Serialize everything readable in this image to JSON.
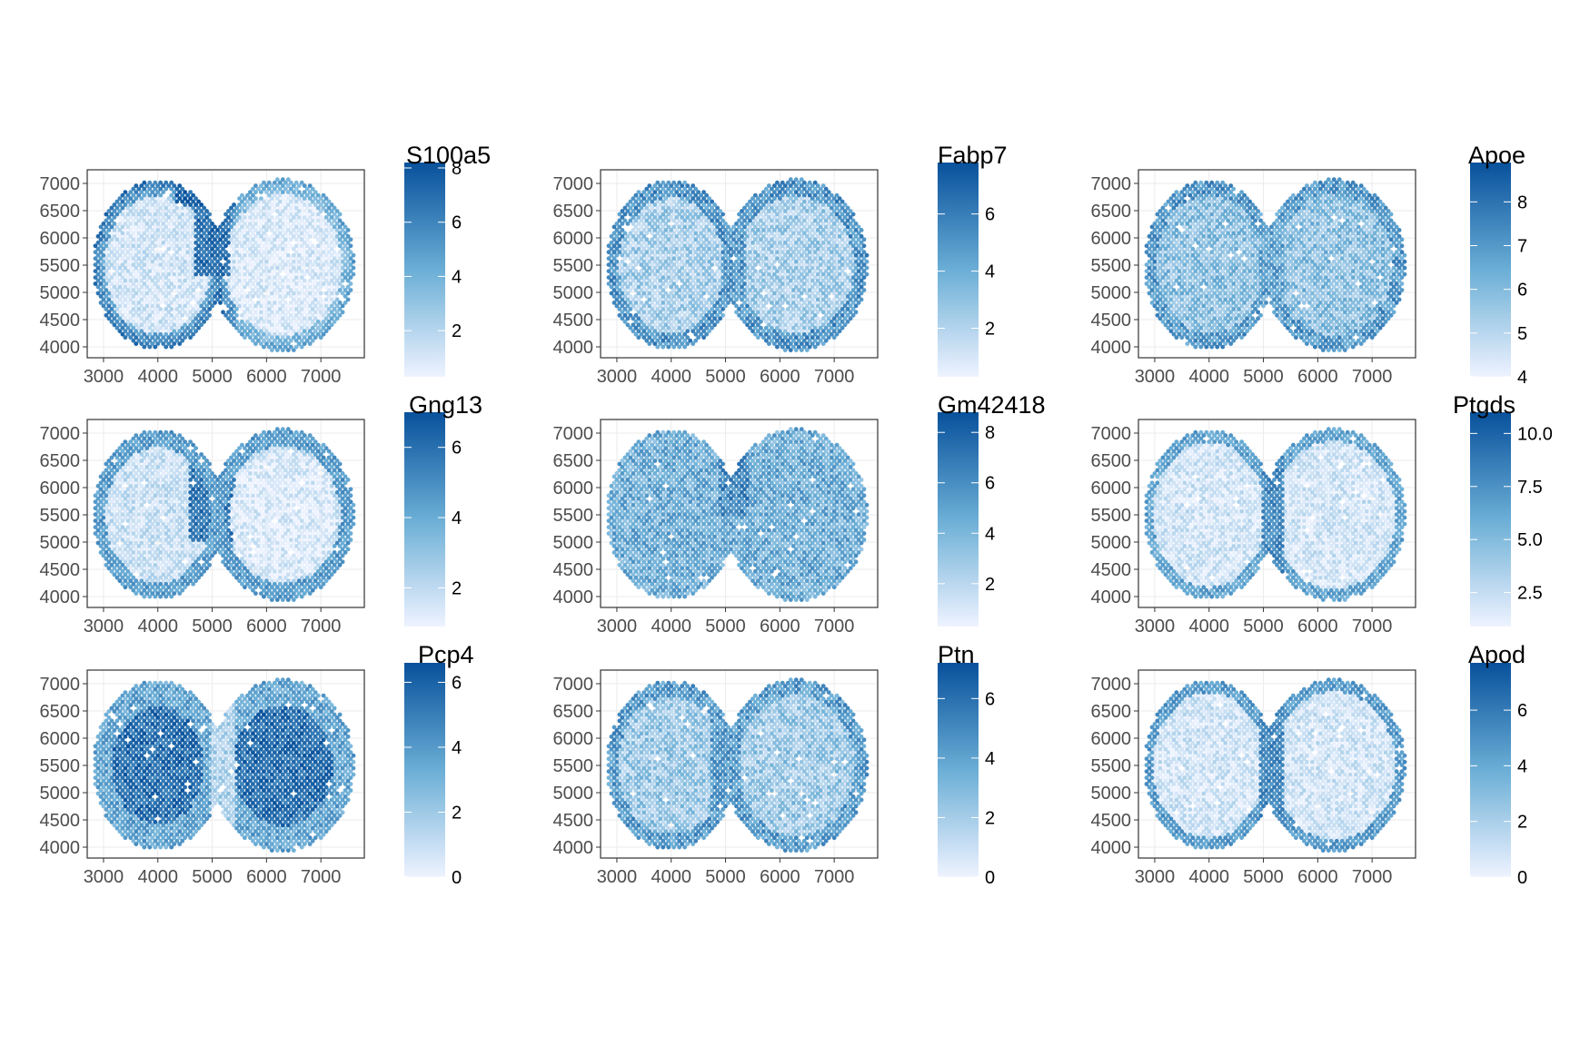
{
  "chart_data": [
    {
      "type": "scatter",
      "gene": "S100a5",
      "legend": {
        "title": "S100a5",
        "ticks": [
          "2",
          "4",
          "6",
          "8"
        ],
        "tick_values": [
          2,
          4,
          6,
          8
        ],
        "range": [
          0.3,
          8.2
        ]
      },
      "pattern": "s100a5",
      "xlim": [
        2700,
        7800
      ],
      "ylim": [
        3800,
        7250
      ],
      "x_ticks": [
        "3000",
        "4000",
        "5000",
        "6000",
        "7000"
      ],
      "y_ticks": [
        "4000",
        "4500",
        "5000",
        "5500",
        "6000",
        "6500",
        "7000"
      ]
    },
    {
      "type": "scatter",
      "gene": "Fabp7",
      "legend": {
        "title": "Fabp7",
        "ticks": [
          "2",
          "4",
          "6"
        ],
        "tick_values": [
          2,
          4,
          6
        ],
        "range": [
          0.3,
          7.8
        ]
      },
      "pattern": "fabp7",
      "xlim": [
        2700,
        7800
      ],
      "ylim": [
        3800,
        7250
      ],
      "x_ticks": [
        "3000",
        "4000",
        "5000",
        "6000",
        "7000"
      ],
      "y_ticks": [
        "4000",
        "4500",
        "5000",
        "5500",
        "6000",
        "6500",
        "7000"
      ]
    },
    {
      "type": "scatter",
      "gene": "Apoe",
      "legend": {
        "title": "Apoe",
        "ticks": [
          "4",
          "5",
          "6",
          "7",
          "8"
        ],
        "tick_values": [
          4,
          5,
          6,
          7,
          8
        ],
        "range": [
          4.0,
          8.9
        ]
      },
      "pattern": "apoe",
      "xlim": [
        2700,
        7800
      ],
      "ylim": [
        3800,
        7250
      ],
      "x_ticks": [
        "3000",
        "4000",
        "5000",
        "6000",
        "7000"
      ],
      "y_ticks": [
        "4000",
        "4500",
        "5000",
        "5500",
        "6000",
        "6500",
        "7000"
      ]
    },
    {
      "type": "scatter",
      "gene": "Gng13",
      "legend": {
        "title": "Gng13",
        "ticks": [
          "2",
          "4",
          "6"
        ],
        "tick_values": [
          2,
          4,
          6
        ],
        "range": [
          0.9,
          7.0
        ]
      },
      "pattern": "gng13",
      "xlim": [
        2700,
        7800
      ],
      "ylim": [
        3800,
        7250
      ],
      "x_ticks": [
        "3000",
        "4000",
        "5000",
        "6000",
        "7000"
      ],
      "y_ticks": [
        "4000",
        "4500",
        "5000",
        "5500",
        "6000",
        "6500",
        "7000"
      ]
    },
    {
      "type": "scatter",
      "gene": "Gm42418",
      "legend": {
        "title": "Gm42418",
        "ticks": [
          "2",
          "4",
          "6",
          "8"
        ],
        "tick_values": [
          2,
          4,
          6,
          8
        ],
        "range": [
          0.3,
          8.8
        ]
      },
      "pattern": "gm42418",
      "xlim": [
        2700,
        7800
      ],
      "ylim": [
        3800,
        7250
      ],
      "x_ticks": [
        "3000",
        "4000",
        "5000",
        "6000",
        "7000"
      ],
      "y_ticks": [
        "4000",
        "4500",
        "5000",
        "5500",
        "6000",
        "6500",
        "7000"
      ]
    },
    {
      "type": "scatter",
      "gene": "Ptgds",
      "legend": {
        "title": "Ptgds",
        "ticks": [
          "2.5",
          "5.0",
          "7.5",
          "10.0"
        ],
        "tick_values": [
          2.5,
          5.0,
          7.5,
          10.0
        ],
        "range": [
          0.9,
          11.0
        ]
      },
      "pattern": "ptgds",
      "xlim": [
        2700,
        7800
      ],
      "ylim": [
        3800,
        7250
      ],
      "x_ticks": [
        "3000",
        "4000",
        "5000",
        "6000",
        "7000"
      ],
      "y_ticks": [
        "4000",
        "4500",
        "5000",
        "5500",
        "6000",
        "6500",
        "7000"
      ]
    },
    {
      "type": "scatter",
      "gene": "Pcp4",
      "legend": {
        "title": "Pcp4",
        "ticks": [
          "0",
          "2",
          "4",
          "6"
        ],
        "tick_values": [
          0,
          2,
          4,
          6
        ],
        "range": [
          0.0,
          6.6
        ]
      },
      "pattern": "pcp4",
      "xlim": [
        2700,
        7800
      ],
      "ylim": [
        3800,
        7250
      ],
      "x_ticks": [
        "3000",
        "4000",
        "5000",
        "6000",
        "7000"
      ],
      "y_ticks": [
        "4000",
        "4500",
        "5000",
        "5500",
        "6000",
        "6500",
        "7000"
      ]
    },
    {
      "type": "scatter",
      "gene": "Ptn",
      "legend": {
        "title": "Ptn",
        "ticks": [
          "0",
          "2",
          "4",
          "6"
        ],
        "tick_values": [
          0,
          2,
          4,
          6
        ],
        "range": [
          0.0,
          7.2
        ]
      },
      "pattern": "ptn",
      "xlim": [
        2700,
        7800
      ],
      "ylim": [
        3800,
        7250
      ],
      "x_ticks": [
        "3000",
        "4000",
        "5000",
        "6000",
        "7000"
      ],
      "y_ticks": [
        "4000",
        "4500",
        "5000",
        "5500",
        "6000",
        "6500",
        "7000"
      ]
    },
    {
      "type": "scatter",
      "gene": "Apod",
      "legend": {
        "title": "Apod",
        "ticks": [
          "0",
          "2",
          "4",
          "6"
        ],
        "tick_values": [
          0,
          2,
          4,
          6
        ],
        "range": [
          0.0,
          7.7
        ]
      },
      "pattern": "apod",
      "xlim": [
        2700,
        7800
      ],
      "ylim": [
        3800,
        7250
      ],
      "x_ticks": [
        "3000",
        "4000",
        "5000",
        "6000",
        "7000"
      ],
      "y_ticks": [
        "4000",
        "4500",
        "5000",
        "5500",
        "6000",
        "6500",
        "7000"
      ]
    }
  ],
  "colors": {
    "low": "#eef3ff",
    "mid": "#6baed6",
    "high": "#08519c",
    "panel_border": "#333333",
    "grid": "#ebebeb"
  }
}
